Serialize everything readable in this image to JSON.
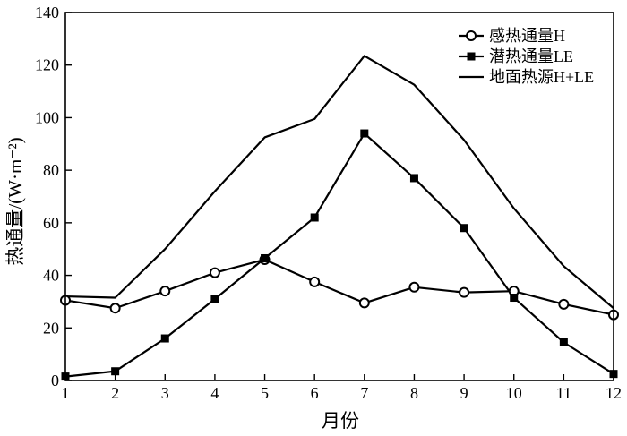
{
  "chart_data": {
    "type": "line",
    "title": "",
    "xlabel": "月份",
    "ylabel": "热通量/(W·m⁻²)",
    "x": [
      1,
      2,
      3,
      4,
      5,
      6,
      7,
      8,
      9,
      10,
      11,
      12
    ],
    "xlim": [
      1,
      12
    ],
    "ylim": [
      0,
      140
    ],
    "x_ticks": [
      "1",
      "2",
      "3",
      "4",
      "5",
      "6",
      "7",
      "8",
      "9",
      "10",
      "11",
      "12"
    ],
    "y_ticks": [
      "0",
      "20",
      "40",
      "60",
      "80",
      "100",
      "120",
      "140"
    ],
    "grid": false,
    "legend_position": "top-right",
    "series": [
      {
        "name": "感热通量H",
        "marker": "open-circle",
        "color": "#000000",
        "values": [
          30.5,
          27.5,
          34,
          41,
          46,
          37.5,
          29.5,
          35.5,
          33.5,
          34,
          29,
          25
        ]
      },
      {
        "name": "潜热通量LE",
        "marker": "filled-square",
        "color": "#000000",
        "values": [
          1.5,
          3.5,
          16,
          31,
          46.5,
          62,
          94,
          77,
          58,
          31.5,
          14.5,
          2.5
        ]
      },
      {
        "name": "地面热源H+LE",
        "marker": "none",
        "color": "#000000",
        "values": [
          32,
          31.5,
          50,
          72,
          92.5,
          99.5,
          123.5,
          112.5,
          91.5,
          65.5,
          43.5,
          27.5
        ]
      }
    ]
  }
}
